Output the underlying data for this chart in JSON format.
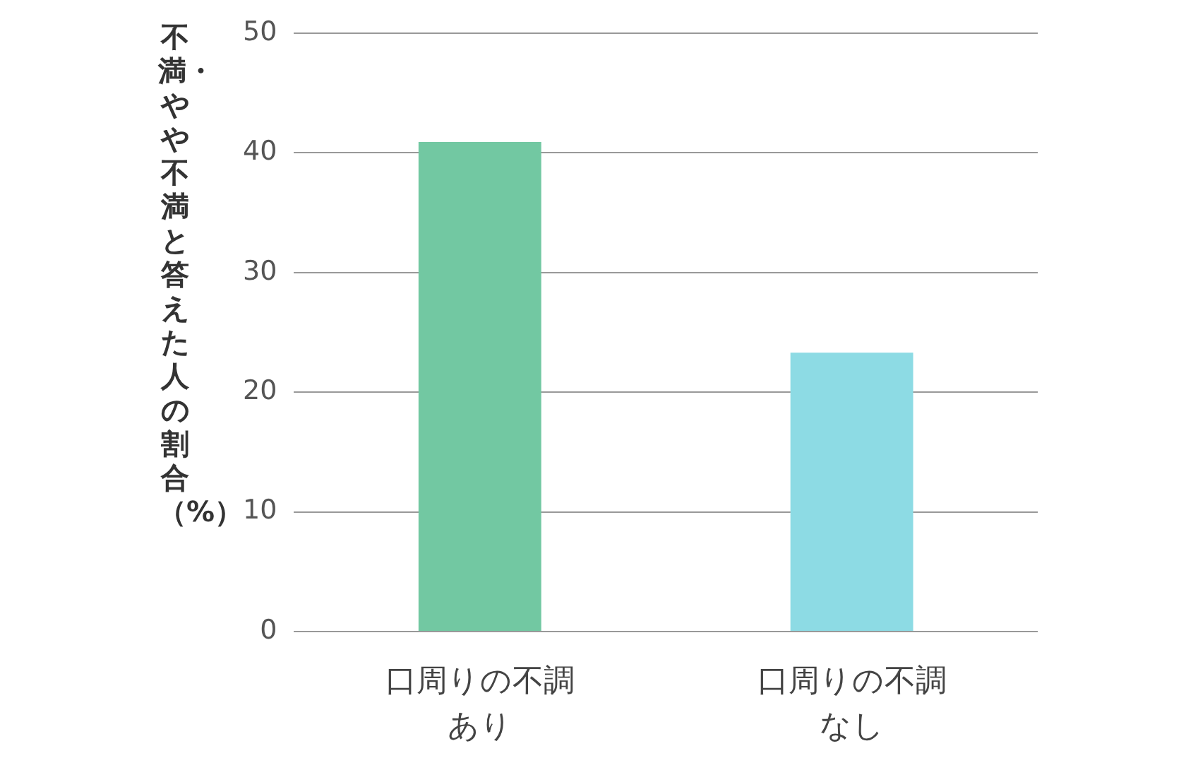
{
  "chart_data": {
    "type": "bar",
    "ylabel": "不満・やや不満と答えた人の割合（%）",
    "categories": [
      "口周りの不調あり",
      "口周りの不調なし"
    ],
    "values": [
      40.9,
      23.3
    ],
    "colors": [
      "#72c8a2",
      "#8ddbe4"
    ],
    "ylim": [
      0,
      50
    ],
    "yticks": [
      0,
      10,
      20,
      30,
      40,
      50
    ],
    "grid": "y",
    "legend": false
  }
}
